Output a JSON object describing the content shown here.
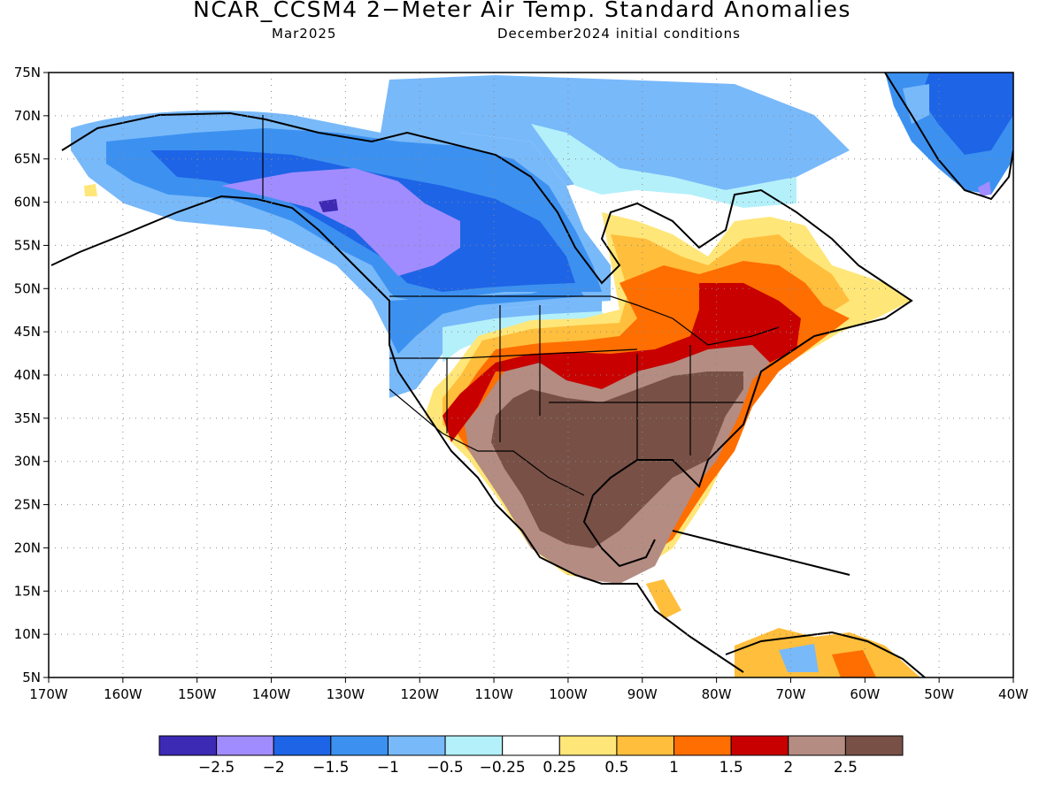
{
  "title": "NCAR_CCSM4 2−Meter Air Temp. Standard Anomalies",
  "valid_month": "Mar2025",
  "init_conditions": "December2024 initial conditions",
  "map": {
    "lat_labels": [
      "75N",
      "70N",
      "65N",
      "60N",
      "55N",
      "50N",
      "45N",
      "40N",
      "35N",
      "30N",
      "25N",
      "20N",
      "15N",
      "10N",
      "5N"
    ],
    "lon_labels": [
      "170W",
      "160W",
      "150W",
      "140W",
      "130W",
      "120W",
      "110W",
      "100W",
      "90W",
      "80W",
      "70W",
      "60W",
      "50W",
      "40W"
    ]
  },
  "colorbar": {
    "colors": [
      "#3c2ab4",
      "#a08cff",
      "#1e64e6",
      "#3c91f0",
      "#78b9fa",
      "#b4f0fa",
      "#ffffff",
      "#ffe678",
      "#ffbe3c",
      "#ff6e00",
      "#c80000",
      "#b48c82",
      "#785046"
    ],
    "labels": [
      "−2.5",
      "−2",
      "−1.5",
      "−1",
      "−0.5",
      "−0.25",
      "0.25",
      "0.5",
      "1",
      "1.5",
      "2",
      "2.5"
    ]
  }
}
